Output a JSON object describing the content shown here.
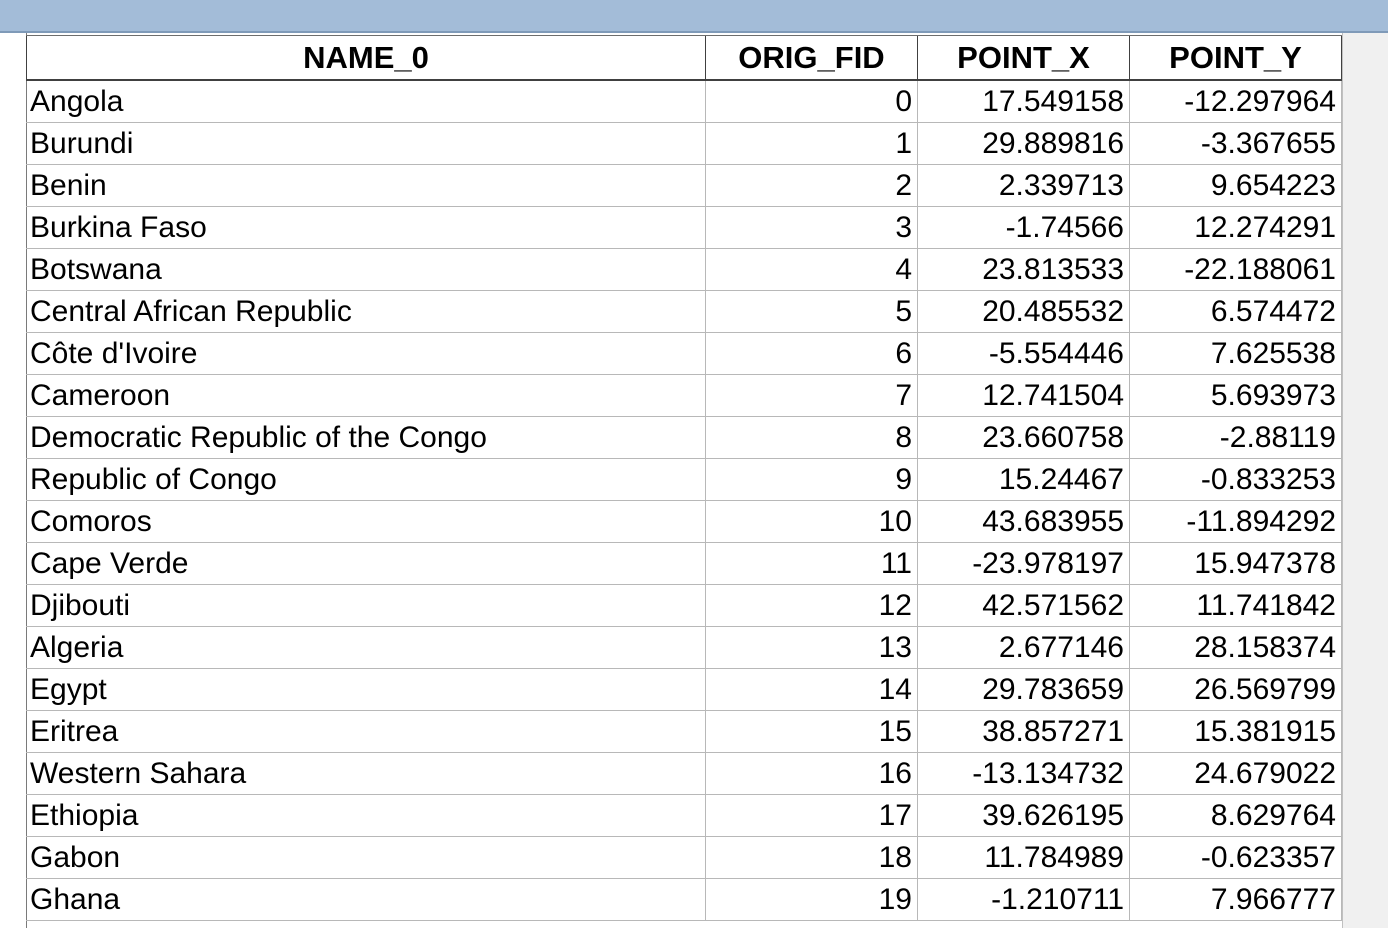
{
  "table": {
    "columns": [
      "NAME_0",
      "ORIG_FID",
      "POINT_X",
      "POINT_Y"
    ],
    "rows": [
      {
        "name": "Angola",
        "fid": "0",
        "x": "17.549158",
        "y": "-12.297964"
      },
      {
        "name": "Burundi",
        "fid": "1",
        "x": "29.889816",
        "y": "-3.367655"
      },
      {
        "name": "Benin",
        "fid": "2",
        "x": "2.339713",
        "y": "9.654223"
      },
      {
        "name": "Burkina Faso",
        "fid": "3",
        "x": "-1.74566",
        "y": "12.274291"
      },
      {
        "name": "Botswana",
        "fid": "4",
        "x": "23.813533",
        "y": "-22.188061"
      },
      {
        "name": "Central African Republic",
        "fid": "5",
        "x": "20.485532",
        "y": "6.574472"
      },
      {
        "name": "Côte d'Ivoire",
        "fid": "6",
        "x": "-5.554446",
        "y": "7.625538"
      },
      {
        "name": "Cameroon",
        "fid": "7",
        "x": "12.741504",
        "y": "5.693973"
      },
      {
        "name": "Democratic Republic of the Congo",
        "fid": "8",
        "x": "23.660758",
        "y": "-2.88119"
      },
      {
        "name": "Republic of Congo",
        "fid": "9",
        "x": "15.24467",
        "y": "-0.833253"
      },
      {
        "name": "Comoros",
        "fid": "10",
        "x": "43.683955",
        "y": "-11.894292"
      },
      {
        "name": "Cape Verde",
        "fid": "11",
        "x": "-23.978197",
        "y": "15.947378"
      },
      {
        "name": "Djibouti",
        "fid": "12",
        "x": "42.571562",
        "y": "11.741842"
      },
      {
        "name": "Algeria",
        "fid": "13",
        "x": "2.677146",
        "y": "28.158374"
      },
      {
        "name": "Egypt",
        "fid": "14",
        "x": "29.783659",
        "y": "26.569799"
      },
      {
        "name": "Eritrea",
        "fid": "15",
        "x": "38.857271",
        "y": "15.381915"
      },
      {
        "name": "Western Sahara",
        "fid": "16",
        "x": "-13.134732",
        "y": "24.679022"
      },
      {
        "name": "Ethiopia",
        "fid": "17",
        "x": "39.626195",
        "y": "8.629764"
      },
      {
        "name": "Gabon",
        "fid": "18",
        "x": "11.784989",
        "y": "-0.623357"
      },
      {
        "name": "Ghana",
        "fid": "19",
        "x": "-1.210711",
        "y": "7.966777"
      }
    ]
  }
}
